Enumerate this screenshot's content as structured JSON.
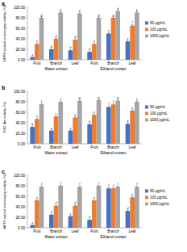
{
  "chart_data": [
    {
      "type": "bar",
      "panel": "a",
      "ylabel": "DPPH radical scavenging activity (%)",
      "categories": [
        "Fruit",
        "Branch",
        "Leaf",
        "Fruit",
        "Branch",
        "Leaf"
      ],
      "groups": [
        "Water extract",
        "Ethanol extract"
      ],
      "ylim": [
        0,
        100
      ],
      "yticks": [
        {
          "value": 0,
          "label": "0.00"
        },
        {
          "value": 20,
          "label": "20.00"
        },
        {
          "value": 40,
          "label": "40.00"
        },
        {
          "value": 60,
          "label": "60.00"
        },
        {
          "value": 80,
          "label": "80.00"
        },
        {
          "value": 100,
          "label": "100.00"
        }
      ],
      "grid": false,
      "legend": "right",
      "series": [
        {
          "name": "50 μg/mL",
          "color": "#4472c4",
          "values": [
            5,
            20,
            18,
            15,
            50,
            35
          ],
          "errors": [
            1.5,
            2,
            1.5,
            2,
            2,
            2
          ],
          "letters": [
            "a",
            "b",
            "b",
            "b",
            "e",
            "c"
          ]
        },
        {
          "name": "100 μg/mL",
          "color": "#ed7d31",
          "values": [
            30,
            40,
            38,
            30,
            80,
            65
          ],
          "errors": [
            2,
            2,
            2,
            2,
            2,
            2
          ],
          "letters": [
            "c",
            "d",
            "d",
            "c",
            "g",
            "f"
          ]
        },
        {
          "name": "1000 μg/mL",
          "color": "#a5a5a5",
          "values": [
            80,
            90,
            88,
            80,
            93,
            90
          ],
          "errors": [
            2,
            1.5,
            1.5,
            2,
            1.5,
            1.5
          ],
          "letters": [
            "g",
            "h",
            "h",
            "g",
            "h",
            "h"
          ]
        }
      ]
    },
    {
      "type": "bar",
      "panel": "b",
      "ylabel": "SOD-like activity (%)",
      "categories": [
        "Fruit",
        "Branch",
        "Leaf",
        "Fruit",
        "Branch",
        "Leaf"
      ],
      "groups": [
        "Water extract",
        "Ethanol extract"
      ],
      "ylim": [
        0,
        100
      ],
      "yticks": [
        {
          "value": 0,
          "label": "0.00"
        },
        {
          "value": 20,
          "label": "20.00"
        },
        {
          "value": 40,
          "label": "40.00"
        },
        {
          "value": 60,
          "label": "60.00"
        },
        {
          "value": 80,
          "label": "80.00"
        },
        {
          "value": 100,
          "label": "100.00"
        }
      ],
      "grid": false,
      "legend": "right",
      "series": [
        {
          "name": "50 μg/mL",
          "color": "#4472c4",
          "values": [
            32,
            25,
            25,
            37,
            70,
            38
          ],
          "errors": [
            2,
            1.5,
            1.5,
            2,
            2,
            2
          ],
          "letters": [
            "b",
            "a",
            "a",
            "b",
            "f",
            "b"
          ]
        },
        {
          "name": "100 μg/mL",
          "color": "#ed7d31",
          "values": [
            47,
            52,
            50,
            55,
            75,
            63
          ],
          "errors": [
            2,
            2,
            2,
            2,
            2,
            2
          ],
          "letters": [
            "c",
            "c",
            "c",
            "c",
            "f",
            "e"
          ]
        },
        {
          "name": "1000 μg/mL",
          "color": "#a5a5a5",
          "values": [
            75,
            80,
            82,
            83,
            82,
            80
          ],
          "errors": [
            2,
            2,
            2,
            2,
            2,
            2
          ],
          "letters": [
            "f",
            "f",
            "g",
            "g",
            "g",
            "f"
          ]
        }
      ]
    },
    {
      "type": "bar",
      "panel": "c",
      "ylabel": "ABTS radical scavenging activity (%)",
      "categories": [
        "Fruit",
        "Branch",
        "Leaf",
        "Fruit",
        "Branch",
        "Leaf"
      ],
      "groups": [
        "Water extract",
        "Ethanol extract"
      ],
      "ylim": [
        0,
        100
      ],
      "yticks": [
        {
          "value": 0,
          "label": "0.00"
        },
        {
          "value": 20,
          "label": "20.00"
        },
        {
          "value": 40,
          "label": "40.00"
        },
        {
          "value": 60,
          "label": "60.00"
        },
        {
          "value": 80,
          "label": "80.00"
        },
        {
          "value": 100,
          "label": "100.00"
        }
      ],
      "grid": false,
      "legend": "right",
      "series": [
        {
          "name": "50 μg/mL",
          "color": "#4472c4",
          "values": [
            5,
            25,
            22,
            15,
            75,
            32
          ],
          "errors": [
            1,
            2,
            1.5,
            1.5,
            2,
            2
          ],
          "letters": [
            "a",
            "c",
            "c",
            "b",
            "f",
            "d"
          ]
        },
        {
          "name": "100 μg/mL",
          "color": "#ed7d31",
          "values": [
            52,
            42,
            42,
            52,
            75,
            58
          ],
          "errors": [
            2,
            2,
            2,
            2,
            2,
            2
          ],
          "letters": [
            "e",
            "d",
            "d",
            "e",
            "f",
            "e"
          ]
        },
        {
          "name": "1000 μg/mL",
          "color": "#a5a5a5",
          "values": [
            78,
            80,
            78,
            80,
            78,
            78
          ],
          "errors": [
            1.5,
            1.5,
            1.5,
            1.5,
            1.5,
            1.5
          ],
          "letters": [
            "f",
            "f",
            "f",
            "f",
            "f",
            "f"
          ]
        }
      ]
    }
  ]
}
